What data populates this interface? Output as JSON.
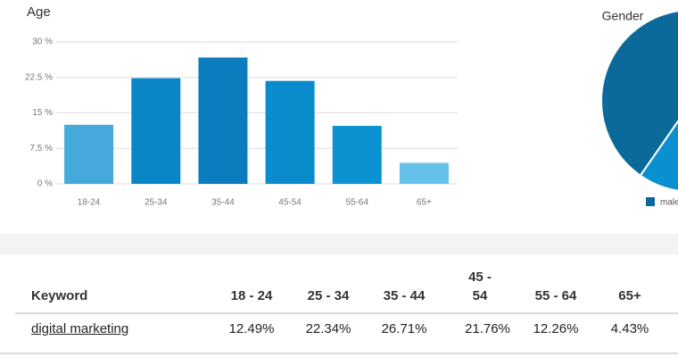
{
  "chart_data": [
    {
      "type": "bar",
      "title": "Age",
      "categories": [
        "18-24",
        "25-34",
        "35-44",
        "45-54",
        "55-64",
        "65+"
      ],
      "values": [
        12.49,
        22.34,
        26.71,
        21.76,
        12.26,
        4.43
      ],
      "colors": [
        "#45a9dc",
        "#0a86c8",
        "#0b7dbf",
        "#0a8ccc",
        "#0a93d0",
        "#66c1e8"
      ],
      "ylim": [
        0,
        30
      ],
      "yticks": [
        {
          "value": 0,
          "label": "0 %"
        },
        {
          "value": 7.5,
          "label": "7.5 %"
        },
        {
          "value": 15,
          "label": "15 %"
        },
        {
          "value": 22.5,
          "label": "22.5 %"
        },
        {
          "value": 30,
          "label": "30 %"
        }
      ],
      "grid": true
    },
    {
      "type": "pie",
      "title": "Gender",
      "categories": [
        "male",
        null
      ],
      "values": [
        62,
        38
      ],
      "colors": [
        "#0b6a9a",
        "#0a8fd0"
      ]
    }
  ],
  "table": {
    "header": [
      "Keyword",
      "18 - 24",
      "25 - 34",
      "35 - 44",
      "45 - 54",
      "55 - 64",
      "65+"
    ],
    "rows": [
      [
        "digital marketing",
        "12.49%",
        "22.34%",
        "26.71%",
        "21.76%",
        "12.26%",
        "4.43%"
      ]
    ]
  }
}
